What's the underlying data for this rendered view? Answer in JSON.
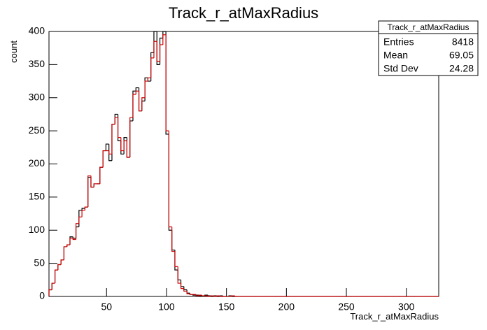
{
  "chart_data": {
    "type": "histogram",
    "title": "Track_r_atMaxRadius",
    "x_label": "Track_r_atMaxRadius",
    "y_label": "count",
    "bins": [
      2,
      4.5,
      7,
      9.5,
      12,
      14.5,
      17,
      19.5,
      22,
      24.5,
      27,
      29.5,
      32,
      34.5,
      37,
      39.5,
      42,
      44.5,
      47,
      49.5,
      52,
      54.5,
      57,
      59.5,
      62,
      64.5,
      67,
      69.5,
      72,
      74.5,
      77,
      79.5,
      82,
      84.5,
      87,
      89.5,
      92,
      94.5,
      97,
      99.5,
      102,
      104.5,
      107,
      109.5,
      112,
      114.5,
      117,
      119.5,
      122,
      124.5,
      127,
      129.5,
      132,
      134.5,
      137,
      139.5,
      142,
      144.5,
      147,
      149.5,
      152,
      154.5,
      157,
      159.5,
      162,
      164.5,
      167,
      169.5,
      172,
      174.5,
      177,
      179.5,
      182,
      184.5,
      187,
      189.5,
      192,
      194.5,
      197,
      199.5,
      202,
      204.5,
      207,
      209.5,
      212,
      214.5,
      217,
      219.5,
      222,
      224.5,
      227,
      229.5,
      232,
      234.5,
      237,
      239.5,
      242,
      244.5,
      247,
      249.5,
      252,
      254.5,
      257,
      259.5,
      262,
      264.5,
      267,
      269.5,
      272,
      274.5,
      277,
      279.5,
      282,
      284.5,
      287,
      289.5,
      292,
      294.5,
      297,
      299.5,
      302,
      304.5,
      307,
      309.5,
      312,
      314.5,
      317,
      319.5,
      322,
      324.5,
      327
    ],
    "series": [
      {
        "color": "#000000",
        "values": [
          10,
          20,
          40,
          48,
          55,
          75,
          78,
          90,
          88,
          105,
          130,
          133,
          135,
          180,
          165,
          170,
          170,
          195,
          220,
          230,
          205,
          260,
          275,
          235,
          215,
          240,
          210,
          265,
          310,
          315,
          280,
          295,
          330,
          325,
          368,
          400,
          350,
          390,
          400,
          245,
          100,
          70,
          40,
          25,
          15,
          10,
          5,
          3,
          2,
          2,
          1,
          1,
          2,
          1,
          0,
          1,
          0,
          1,
          0,
          0,
          1,
          0,
          0,
          0,
          0,
          0,
          0,
          0,
          0,
          0,
          0,
          0,
          0,
          0,
          0,
          0,
          0,
          0,
          0,
          0,
          0,
          0,
          0,
          0,
          0,
          0,
          0,
          0,
          0,
          0,
          0,
          0,
          0,
          0,
          0,
          0,
          0,
          0,
          0,
          0,
          0,
          0,
          0,
          0,
          0,
          0,
          0,
          0,
          0,
          0,
          0,
          0,
          0,
          0,
          0,
          0,
          0,
          0,
          0,
          0,
          0,
          0,
          0,
          0,
          0,
          0,
          0,
          0,
          0,
          0
        ]
      },
      {
        "color": "#d00000",
        "values": [
          10,
          20,
          40,
          48,
          55,
          75,
          78,
          88,
          86,
          110,
          120,
          130,
          135,
          182,
          165,
          170,
          170,
          195,
          220,
          220,
          215,
          260,
          270,
          240,
          220,
          235,
          210,
          270,
          305,
          310,
          280,
          300,
          325,
          330,
          360,
          385,
          355,
          380,
          395,
          250,
          105,
          68,
          45,
          20,
          12,
          8,
          4,
          3,
          3,
          1,
          2,
          1,
          1,
          0,
          1,
          0,
          1,
          0,
          0,
          0,
          0,
          1,
          0,
          0,
          0,
          0,
          0,
          0,
          0,
          0,
          0,
          0,
          0,
          0,
          0,
          0,
          0,
          0,
          0,
          0,
          0,
          0,
          0,
          0,
          0,
          0,
          0,
          0,
          0,
          0,
          0,
          0,
          0,
          0,
          0,
          0,
          0,
          0,
          0,
          0,
          0,
          0,
          0,
          0,
          0,
          0,
          0,
          0,
          0,
          0,
          0,
          0,
          0,
          0,
          0,
          0,
          0,
          0,
          0,
          0,
          0,
          0,
          0,
          0,
          0,
          0,
          0,
          0,
          0,
          0
        ]
      }
    ],
    "xlim": [
      2,
      327
    ],
    "ylim": [
      0,
      400
    ],
    "xticks": [
      50,
      100,
      150,
      200,
      250,
      300
    ],
    "yticks": [
      0,
      50,
      100,
      150,
      200,
      250,
      300,
      350,
      400
    ],
    "stats": {
      "title": "Track_r_atMaxRadius",
      "rows": [
        [
          "Entries",
          8418
        ],
        [
          "Mean",
          69.05
        ],
        [
          "Std Dev",
          24.28
        ]
      ]
    }
  }
}
